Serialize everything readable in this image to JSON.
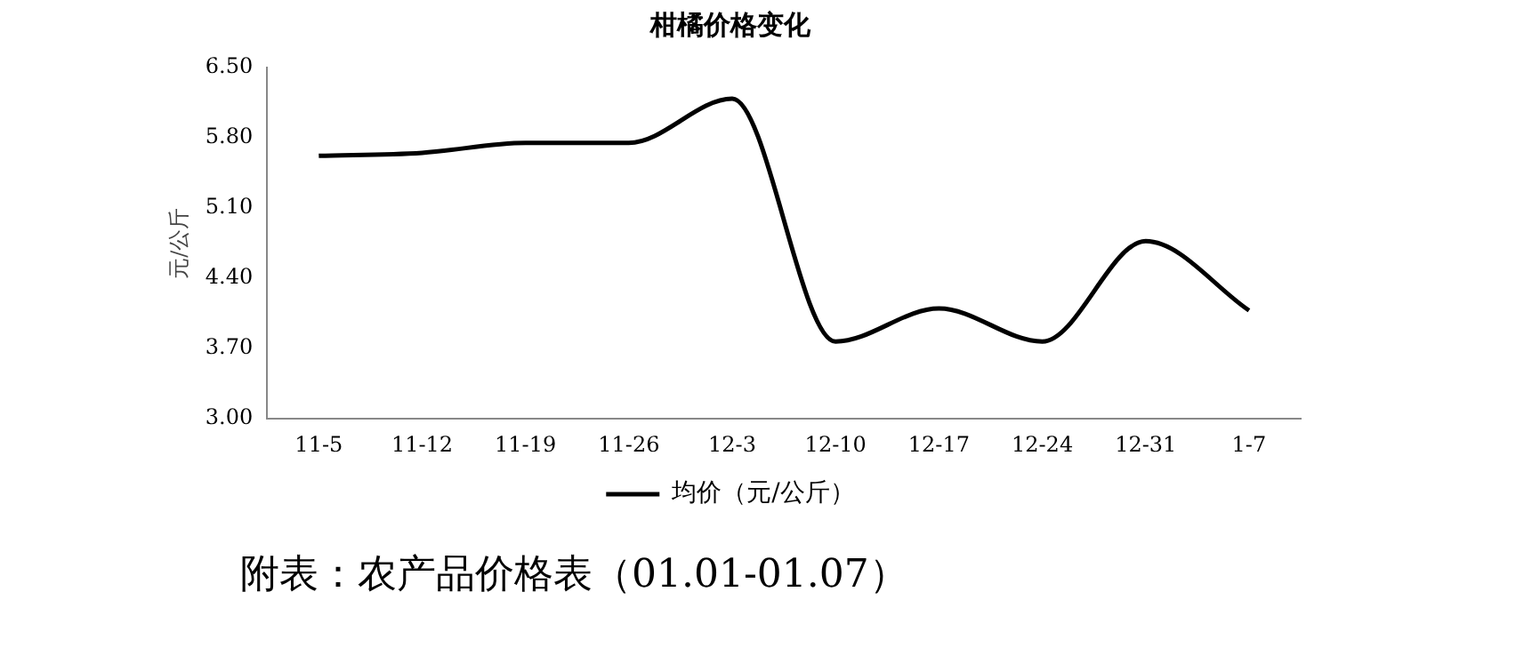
{
  "chart_data": {
    "type": "line",
    "title": "柑橘价格变化",
    "ylabel": "元/公斤",
    "categories": [
      "11-5",
      "11-12",
      "11-19",
      "11-26",
      "12-3",
      "12-10",
      "12-17",
      "12-24",
      "12-31",
      "1-7"
    ],
    "series": [
      {
        "name": "均价（元/公斤）",
        "color": "#000000",
        "values": [
          5.62,
          5.65,
          5.75,
          5.75,
          6.19,
          3.77,
          4.1,
          3.77,
          4.77,
          4.08
        ]
      }
    ],
    "ylim": [
      3,
      6.5
    ],
    "yticks": [
      {
        "value": 3,
        "label": "3.00"
      },
      {
        "value": 3.7,
        "label": "3.70"
      },
      {
        "value": 4.4,
        "label": "4.40"
      },
      {
        "value": 5.1,
        "label": "5.10"
      },
      {
        "value": 5.8,
        "label": "5.80"
      },
      {
        "value": 6.5,
        "label": "6.50"
      }
    ],
    "grid": false,
    "legend": "bottom",
    "marker": "none",
    "line_style": "solid",
    "annotations": [
      "附表：农产品价格表（01.01-01.07）"
    ]
  }
}
